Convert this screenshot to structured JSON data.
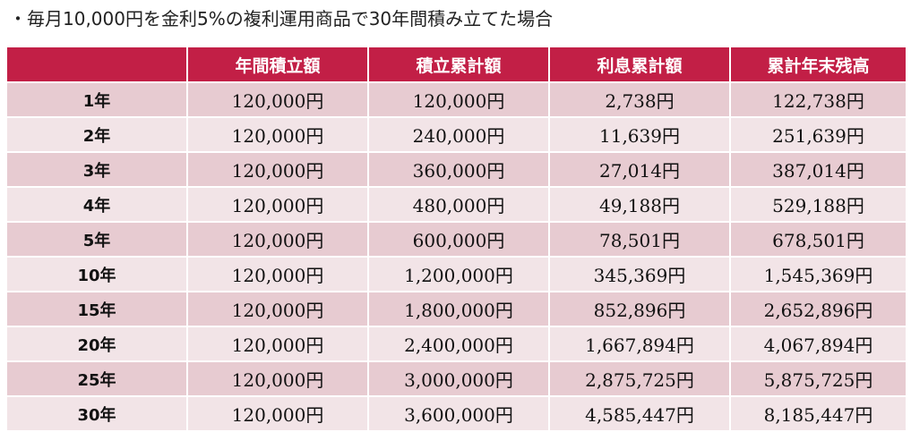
{
  "title": "・毎月10,000円を金利5%の複利運用商品で30年間積み立てた場合",
  "headers": [
    "",
    "年間積立額",
    "積立累計額",
    "利息累計額",
    "累計年末残高"
  ],
  "rows": [
    {
      "year": "1年",
      "annual": "120,000円",
      "cumulative": "120,000円",
      "interest": "2,738円",
      "balance": "122,738円"
    },
    {
      "year": "2年",
      "annual": "120,000円",
      "cumulative": "240,000円",
      "interest": "11,639円",
      "balance": "251,639円"
    },
    {
      "year": "3年",
      "annual": "120,000円",
      "cumulative": "360,000円",
      "interest": "27,014円",
      "balance": "387,014円"
    },
    {
      "year": "4年",
      "annual": "120,000円",
      "cumulative": "480,000円",
      "interest": "49,188円",
      "balance": "529,188円"
    },
    {
      "year": "5年",
      "annual": "120,000円",
      "cumulative": "600,000円",
      "interest": "78,501円",
      "balance": "678,501円"
    },
    {
      "year": "10年",
      "annual": "120,000円",
      "cumulative": "1,200,000円",
      "interest": "345,369円",
      "balance": "1,545,369円"
    },
    {
      "year": "15年",
      "annual": "120,000円",
      "cumulative": "1,800,000円",
      "interest": "852,896円",
      "balance": "2,652,896円"
    },
    {
      "year": "20年",
      "annual": "120,000円",
      "cumulative": "2,400,000円",
      "interest": "1,667,894円",
      "balance": "4,067,894円"
    },
    {
      "year": "25年",
      "annual": "120,000円",
      "cumulative": "3,000,000円",
      "interest": "2,875,725円",
      "balance": "5,875,725円"
    },
    {
      "year": "30年",
      "annual": "120,000円",
      "cumulative": "3,600,000円",
      "interest": "4,585,447円",
      "balance": "8,185,447円"
    }
  ],
  "colors": {
    "header_bg": "#c21f46",
    "header_text": "#ffffff",
    "row_odd_bg": "#e7cbd1",
    "row_even_bg": "#f2e4e7"
  }
}
